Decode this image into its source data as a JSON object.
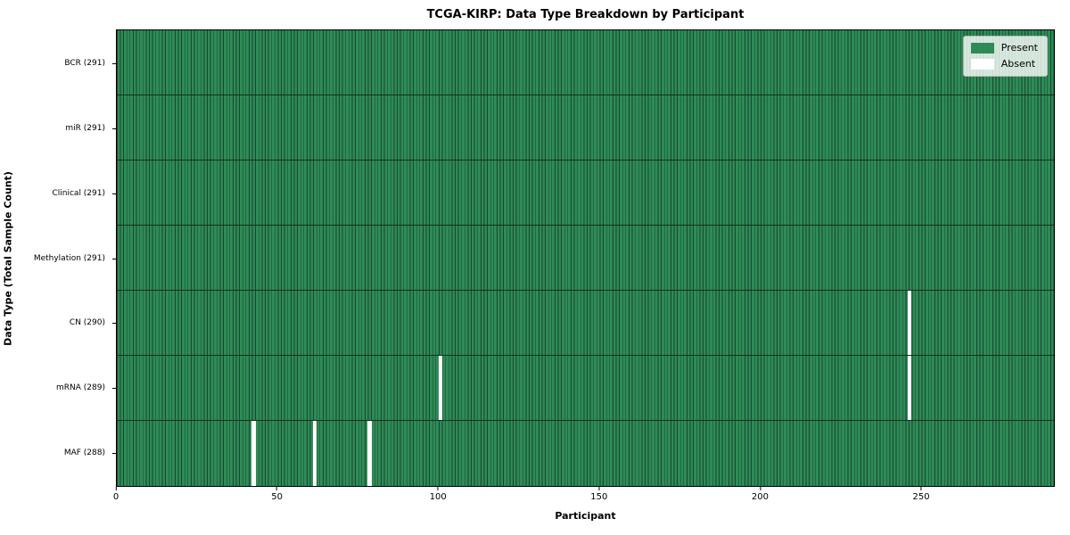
{
  "chart_data": {
    "type": "heatmap",
    "title": "TCGA-KIRP: Data Type Breakdown by Participant",
    "xlabel": "Participant",
    "ylabel": "Data Type (Total Sample Count)",
    "n_participants": 291,
    "x_axis_max": 291.5,
    "x_ticks": [
      0,
      50,
      100,
      150,
      200,
      250
    ],
    "rows": [
      {
        "data_type": "BCR",
        "label": "BCR (291)",
        "present_count": 291,
        "absent_participants": []
      },
      {
        "data_type": "miR",
        "label": "miR (291)",
        "present_count": 291,
        "absent_participants": []
      },
      {
        "data_type": "Clinical",
        "label": "Clinical (291)",
        "present_count": 291,
        "absent_participants": []
      },
      {
        "data_type": "Methylation",
        "label": "Methylation (291)",
        "present_count": 291,
        "absent_participants": []
      },
      {
        "data_type": "CN",
        "label": "CN (290)",
        "present_count": 290,
        "absent_participants": [
          246
        ]
      },
      {
        "data_type": "mRNA",
        "label": "mRNA (289)",
        "present_count": 289,
        "absent_participants": [
          100,
          246
        ]
      },
      {
        "data_type": "MAF",
        "label": "MAF (288)",
        "present_count": 288,
        "absent_participants": [
          42,
          61,
          78
        ]
      }
    ],
    "legend": {
      "position": "upper-right",
      "entries": [
        {
          "label": "Present",
          "color": "#2e8b57"
        },
        {
          "label": "Absent",
          "color": "#ffffff"
        }
      ]
    },
    "colors": {
      "present": "#2e8b57",
      "absent": "#ffffff",
      "cell_edge": "#17462c",
      "row_divider": "#12301e",
      "plot_border": "#000000",
      "background": "#ffffff"
    }
  }
}
